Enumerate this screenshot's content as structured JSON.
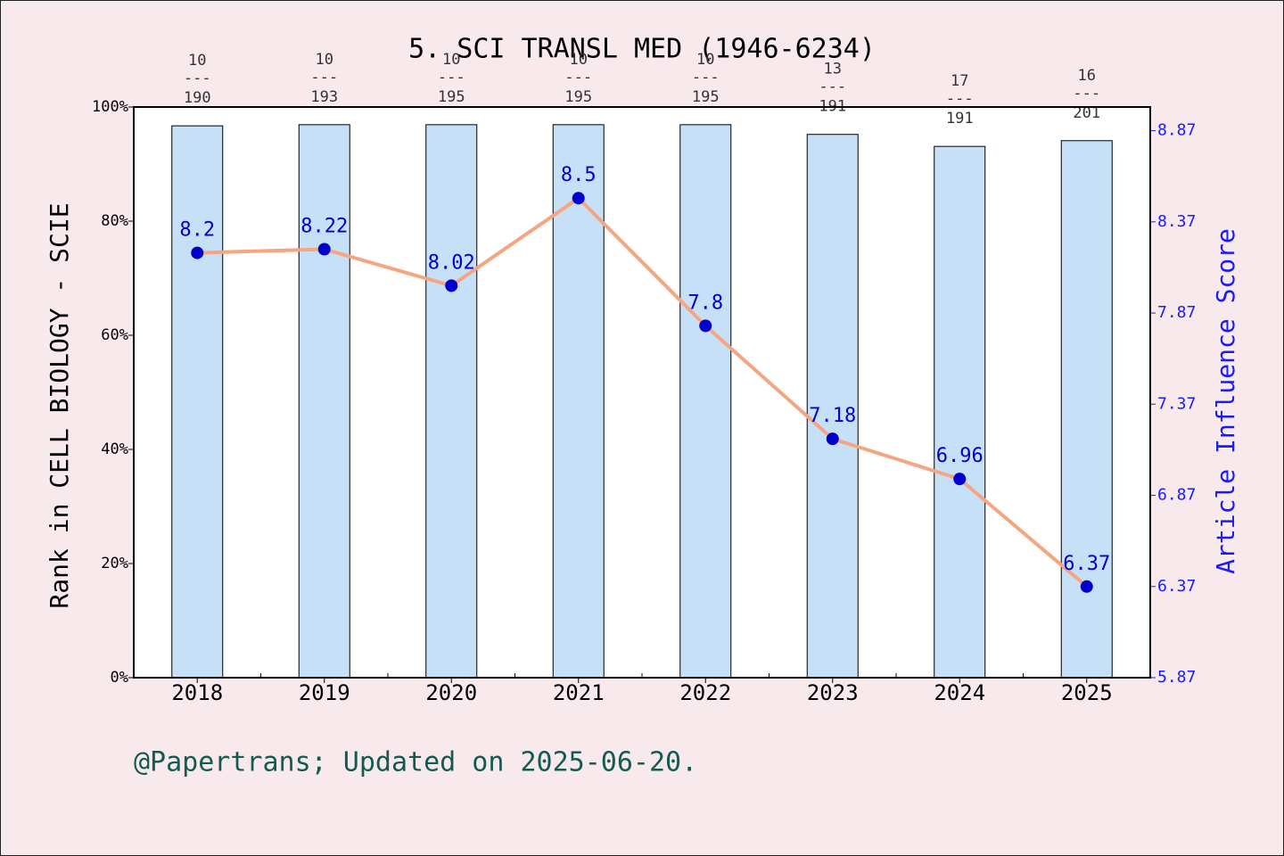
{
  "chart_data": {
    "type": "bar_line",
    "title": "5. SCI TRANSL MED (1946-6234)",
    "ylabel": "Rank in CELL BIOLOGY - SCIE",
    "y2label": "Article Influence Score",
    "footer": "@Papertrans; Updated on 2025-06-20.",
    "categories": [
      "2018",
      "2019",
      "2020",
      "2021",
      "2022",
      "2023",
      "2024",
      "2025"
    ],
    "series": [
      {
        "type": "bar",
        "color": "#c6e0f7",
        "values": [
          96.7,
          96.9,
          96.9,
          96.9,
          96.9,
          95.2,
          93.1,
          94.1
        ]
      },
      {
        "type": "line",
        "axis": "y2",
        "color": "#f4a582",
        "marker_color": "#0000cc",
        "values": [
          8.2,
          8.22,
          8.02,
          8.5,
          7.8,
          7.18,
          6.96,
          6.37
        ]
      }
    ],
    "rank_annotations": [
      [
        "10",
        "190"
      ],
      [
        "10",
        "193"
      ],
      [
        "10",
        "195"
      ],
      [
        "10",
        "195"
      ],
      [
        "10",
        "195"
      ],
      [
        "13",
        "191"
      ],
      [
        "17",
        "191"
      ],
      [
        "16",
        "201"
      ]
    ],
    "rank_separator": "---",
    "ylim": [
      0,
      100
    ],
    "yticks": [
      {
        "value": 0,
        "label": "0%"
      },
      {
        "value": 20,
        "label": "20%"
      },
      {
        "value": 40,
        "label": "40%"
      },
      {
        "value": 60,
        "label": "60%"
      },
      {
        "value": 80,
        "label": "80%"
      },
      {
        "value": 100,
        "label": "100%"
      }
    ],
    "y2lim": [
      5.87,
      9.0
    ],
    "y2ticks": [
      5.87,
      6.37,
      6.87,
      7.37,
      7.87,
      8.37,
      8.87
    ]
  }
}
